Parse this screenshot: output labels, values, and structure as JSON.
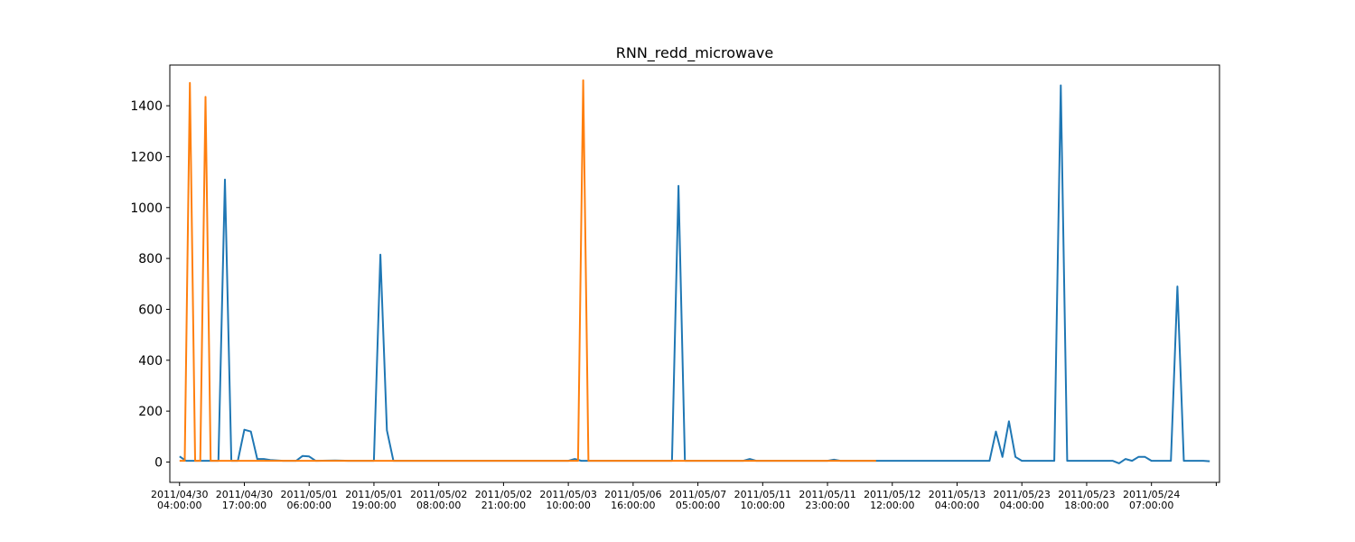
{
  "chart_data": {
    "type": "line",
    "title": "RNN_redd_microwave",
    "xlabel": "",
    "ylabel": "",
    "grid": false,
    "ylim": [
      -80,
      1560
    ],
    "yticks": [
      0,
      200,
      400,
      600,
      800,
      1000,
      1200,
      1400
    ],
    "xlim": [
      -1.5,
      160.5
    ],
    "xticks": [
      {
        "pos": 0,
        "date": "2011/04/30",
        "time": "04:00:00"
      },
      {
        "pos": 10,
        "date": "2011/04/30",
        "time": "17:00:00"
      },
      {
        "pos": 20,
        "date": "2011/05/01",
        "time": "06:00:00"
      },
      {
        "pos": 30,
        "date": "2011/05/01",
        "time": "19:00:00"
      },
      {
        "pos": 40,
        "date": "2011/05/02",
        "time": "08:00:00"
      },
      {
        "pos": 50,
        "date": "2011/05/02",
        "time": "21:00:00"
      },
      {
        "pos": 60,
        "date": "2011/05/03",
        "time": "10:00:00"
      },
      {
        "pos": 70,
        "date": "2011/05/06",
        "time": "16:00:00"
      },
      {
        "pos": 80,
        "date": "2011/05/07",
        "time": "05:00:00"
      },
      {
        "pos": 90,
        "date": "2011/05/11",
        "time": "10:00:00"
      },
      {
        "pos": 100,
        "date": "2011/05/11",
        "time": "23:00:00"
      },
      {
        "pos": 110,
        "date": "2011/05/12",
        "time": "12:00:00"
      },
      {
        "pos": 120,
        "date": "2011/05/13",
        "time": "04:00:00"
      },
      {
        "pos": 130,
        "date": "2011/05/23",
        "time": "04:00:00"
      },
      {
        "pos": 140,
        "date": "2011/05/23",
        "time": "18:00:00"
      },
      {
        "pos": 150,
        "date": "2011/05/24",
        "time": "07:00:00"
      },
      {
        "pos": 160,
        "date": "",
        "time": ""
      }
    ],
    "series": [
      {
        "color": "#1f77b4",
        "points": [
          [
            0,
            22
          ],
          [
            1,
            5
          ],
          [
            6,
            5
          ],
          [
            7,
            1110
          ],
          [
            8,
            5
          ],
          [
            9,
            5
          ],
          [
            10,
            127
          ],
          [
            11,
            120
          ],
          [
            12,
            12
          ],
          [
            13,
            12
          ],
          [
            14,
            8
          ],
          [
            16,
            5
          ],
          [
            18,
            5
          ],
          [
            19,
            24
          ],
          [
            20,
            22
          ],
          [
            21,
            5
          ],
          [
            24,
            6
          ],
          [
            26,
            5
          ],
          [
            30,
            5
          ],
          [
            31,
            815
          ],
          [
            32,
            125
          ],
          [
            33,
            5
          ],
          [
            40,
            5
          ],
          [
            50,
            5
          ],
          [
            60,
            5
          ],
          [
            61,
            12
          ],
          [
            62,
            5
          ],
          [
            70,
            5
          ],
          [
            76,
            5
          ],
          [
            77,
            1085
          ],
          [
            78,
            5
          ],
          [
            87,
            5
          ],
          [
            88,
            12
          ],
          [
            89,
            5
          ],
          [
            100,
            5
          ],
          [
            101,
            9
          ],
          [
            102,
            5
          ],
          [
            110,
            5
          ],
          [
            120,
            5
          ],
          [
            125,
            5
          ],
          [
            126,
            120
          ],
          [
            127,
            20
          ],
          [
            128,
            160
          ],
          [
            129,
            20
          ],
          [
            130,
            5
          ],
          [
            132,
            5
          ],
          [
            135,
            5
          ],
          [
            136,
            1480
          ],
          [
            137,
            5
          ],
          [
            143,
            5
          ],
          [
            144,
            5
          ],
          [
            145,
            -5
          ],
          [
            146,
            12
          ],
          [
            147,
            5
          ],
          [
            148,
            20
          ],
          [
            149,
            20
          ],
          [
            150,
            5
          ],
          [
            152,
            5
          ],
          [
            153,
            5
          ],
          [
            154,
            690
          ],
          [
            155,
            5
          ],
          [
            156,
            5
          ],
          [
            158,
            5
          ],
          [
            159,
            3
          ]
        ]
      },
      {
        "color": "#ff7f0e",
        "points": [
          [
            0,
            5
          ],
          [
            0.8,
            5
          ],
          [
            1.6,
            1490
          ],
          [
            2.4,
            5
          ],
          [
            3.2,
            5
          ],
          [
            4,
            1435
          ],
          [
            4.8,
            5
          ],
          [
            20,
            5
          ],
          [
            40,
            5
          ],
          [
            61.5,
            5
          ],
          [
            62.3,
            1500
          ],
          [
            63.1,
            5
          ],
          [
            80,
            5
          ],
          [
            100,
            5
          ],
          [
            107.5,
            5
          ]
        ]
      }
    ]
  }
}
